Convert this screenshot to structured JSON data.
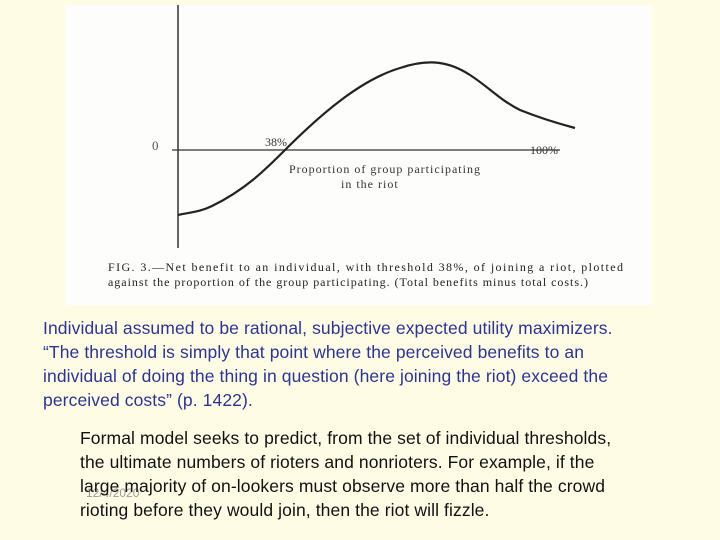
{
  "figure": {
    "y_origin_label": "0",
    "threshold_label": "38%",
    "end_label": "100%",
    "x_axis_label": [
      "Proportion of group participating",
      "in the riot"
    ],
    "caption": [
      "FIG. 3.—Net benefit to an individual, with threshold 38%, of joining a riot, plotted",
      "against the proportion of the group participating. (Total benefits minus total costs.)"
    ]
  },
  "body": {
    "paragraph_1": [
      "Individual assumed to be rational, subjective expected utility maximizers.",
      "“The threshold is simply that point where the perceived benefits to an",
      "individual of doing the thing in question (here joining the riot) exceed the",
      "perceived costs” (p. 1422)."
    ],
    "paragraph_2": [
      "Formal model seeks to predict, from the set of individual thresholds,",
      "the ultimate numbers of rioters and nonrioters. For example, if the",
      "large majority of on-lookers must observe more than half the crowd",
      "rioting before they would join, then the riot will fizzle."
    ],
    "date": "12/4/2020"
  }
}
